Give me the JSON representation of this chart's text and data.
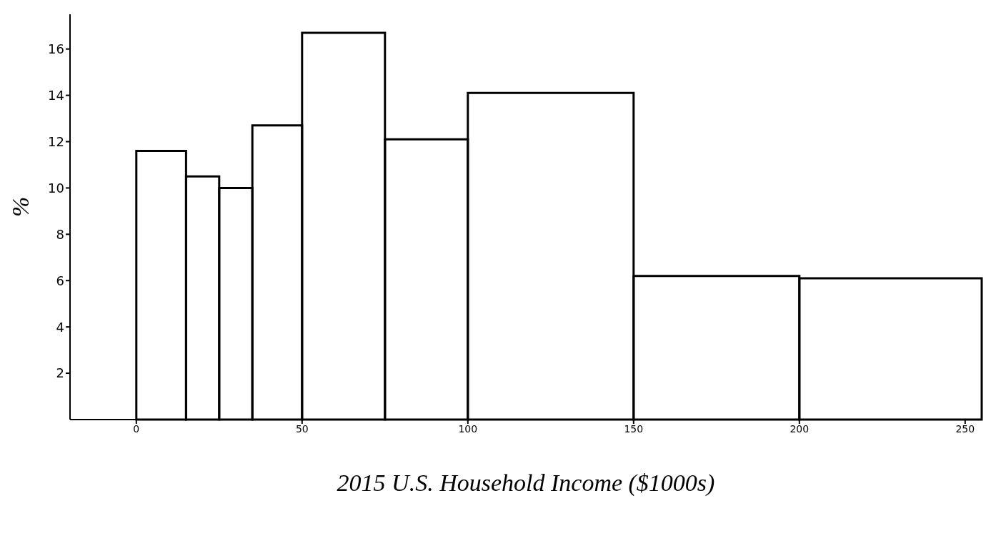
{
  "chart_data": {
    "type": "histogram",
    "xlabel": "2015 U.S. Household Income ($1000s)",
    "ylabel": "%",
    "bins": [
      0,
      15,
      25,
      35,
      50,
      75,
      100,
      150,
      200,
      255
    ],
    "values": [
      11.6,
      10.5,
      10.0,
      12.7,
      16.7,
      12.1,
      14.1,
      6.2,
      6.1
    ],
    "color": "#000000",
    "xlim": [
      -20,
      255
    ],
    "xticks": [
      0,
      50,
      100,
      150,
      200,
      250
    ],
    "ylim": [
      0,
      17.5
    ],
    "yticks": [
      2,
      4,
      6,
      8,
      10,
      12,
      14,
      16
    ],
    "grid": false
  }
}
